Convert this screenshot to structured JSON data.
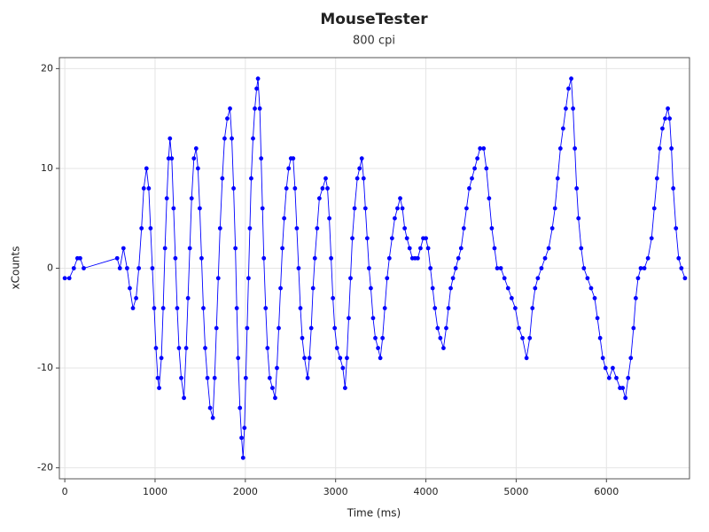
{
  "chart_data": {
    "type": "line",
    "title": "MouseTester",
    "subtitle": "800 cpi",
    "x_label": "Time (ms)",
    "y_label": "xCounts",
    "xlim": [
      -60,
      6920
    ],
    "xticks": [
      0,
      1000,
      2000,
      3000,
      4000,
      5000,
      6000
    ],
    "ylim": [
      -21.1,
      21.1
    ],
    "yticks": [
      -20,
      -10,
      0,
      10,
      20
    ],
    "grid": true,
    "markers": true,
    "series": [
      {
        "color": "#0000ff",
        "x": [
          0,
          50,
          100,
          140,
          170,
          210,
          580,
          610,
          650,
          690,
          720,
          755,
          790,
          820,
          850,
          875,
          905,
          930,
          950,
          970,
          990,
          1010,
          1030,
          1045,
          1070,
          1090,
          1110,
          1130,
          1150,
          1165,
          1185,
          1205,
          1225,
          1245,
          1265,
          1290,
          1320,
          1345,
          1365,
          1385,
          1405,
          1430,
          1455,
          1475,
          1495,
          1515,
          1535,
          1555,
          1580,
          1610,
          1640,
          1660,
          1680,
          1700,
          1720,
          1745,
          1770,
          1800,
          1830,
          1850,
          1870,
          1890,
          1905,
          1920,
          1940,
          1958,
          1975,
          1990,
          2005,
          2020,
          2035,
          2050,
          2065,
          2085,
          2105,
          2125,
          2140,
          2160,
          2175,
          2190,
          2205,
          2225,
          2245,
          2270,
          2300,
          2330,
          2350,
          2370,
          2390,
          2410,
          2430,
          2455,
          2480,
          2505,
          2530,
          2550,
          2570,
          2590,
          2610,
          2630,
          2655,
          2690,
          2710,
          2730,
          2750,
          2770,
          2795,
          2820,
          2855,
          2890,
          2910,
          2930,
          2950,
          2970,
          2990,
          3015,
          3050,
          3080,
          3105,
          3125,
          3145,
          3165,
          3185,
          3210,
          3240,
          3265,
          3290,
          3310,
          3330,
          3350,
          3370,
          3390,
          3415,
          3440,
          3470,
          3495,
          3520,
          3545,
          3570,
          3595,
          3625,
          3655,
          3685,
          3715,
          3740,
          3765,
          3790,
          3820,
          3850,
          3880,
          3910,
          3940,
          3970,
          4000,
          4025,
          4050,
          4075,
          4100,
          4130,
          4160,
          4195,
          4225,
          4250,
          4275,
          4300,
          4330,
          4360,
          4390,
          4420,
          4450,
          4480,
          4510,
          4540,
          4570,
          4600,
          4640,
          4670,
          4700,
          4730,
          4760,
          4790,
          4830,
          4870,
          4910,
          4950,
          4990,
          5030,
          5070,
          5115,
          5150,
          5180,
          5210,
          5240,
          5280,
          5320,
          5360,
          5400,
          5430,
          5460,
          5490,
          5520,
          5550,
          5580,
          5610,
          5630,
          5650,
          5670,
          5690,
          5720,
          5750,
          5790,
          5830,
          5870,
          5900,
          5930,
          5960,
          5990,
          6030,
          6070,
          6110,
          6150,
          6180,
          6210,
          6240,
          6270,
          6300,
          6325,
          6350,
          6380,
          6420,
          6460,
          6500,
          6530,
          6560,
          6590,
          6620,
          6650,
          6680,
          6700,
          6720,
          6740,
          6770,
          6800,
          6830,
          6870
        ],
        "values": [
          -1,
          -1,
          0,
          1,
          1,
          0,
          1,
          0,
          2,
          0,
          -2,
          -4,
          -3,
          0,
          4,
          8,
          10,
          8,
          4,
          0,
          -4,
          -8,
          -11,
          -12,
          -9,
          -4,
          2,
          7,
          11,
          13,
          11,
          6,
          1,
          -4,
          -8,
          -11,
          -13,
          -8,
          -3,
          2,
          7,
          11,
          12,
          10,
          6,
          1,
          -4,
          -8,
          -11,
          -14,
          -15,
          -11,
          -6,
          -1,
          4,
          9,
          13,
          15,
          16,
          13,
          8,
          2,
          -4,
          -9,
          -14,
          -17,
          -19,
          -16,
          -11,
          -6,
          -1,
          4,
          9,
          13,
          16,
          18,
          19,
          16,
          11,
          6,
          1,
          -4,
          -8,
          -11,
          -12,
          -13,
          -10,
          -6,
          -2,
          2,
          5,
          8,
          10,
          11,
          11,
          8,
          4,
          0,
          -4,
          -7,
          -9,
          -11,
          -9,
          -6,
          -2,
          1,
          4,
          7,
          8,
          9,
          8,
          5,
          1,
          -3,
          -6,
          -8,
          -9,
          -10,
          -12,
          -9,
          -5,
          -1,
          3,
          6,
          9,
          10,
          11,
          9,
          6,
          3,
          0,
          -2,
          -5,
          -7,
          -8,
          -9,
          -7,
          -4,
          -1,
          1,
          3,
          5,
          6,
          7,
          6,
          4,
          3,
          2,
          1,
          1,
          1,
          2,
          3,
          3,
          2,
          0,
          -2,
          -4,
          -6,
          -7,
          -8,
          -6,
          -4,
          -2,
          -1,
          0,
          1,
          2,
          4,
          6,
          8,
          9,
          10,
          11,
          12,
          12,
          10,
          7,
          4,
          2,
          0,
          0,
          -1,
          -2,
          -3,
          -4,
          -6,
          -7,
          -9,
          -7,
          -4,
          -2,
          -1,
          0,
          1,
          2,
          4,
          6,
          9,
          12,
          14,
          16,
          18,
          19,
          16,
          12,
          8,
          5,
          2,
          0,
          -1,
          -2,
          -3,
          -5,
          -7,
          -9,
          -10,
          -11,
          -10,
          -11,
          -12,
          -12,
          -13,
          -11,
          -9,
          -6,
          -3,
          -1,
          0,
          0,
          1,
          3,
          6,
          9,
          12,
          14,
          15,
          16,
          15,
          12,
          8,
          4,
          1,
          0,
          -1
        ]
      }
    ]
  }
}
